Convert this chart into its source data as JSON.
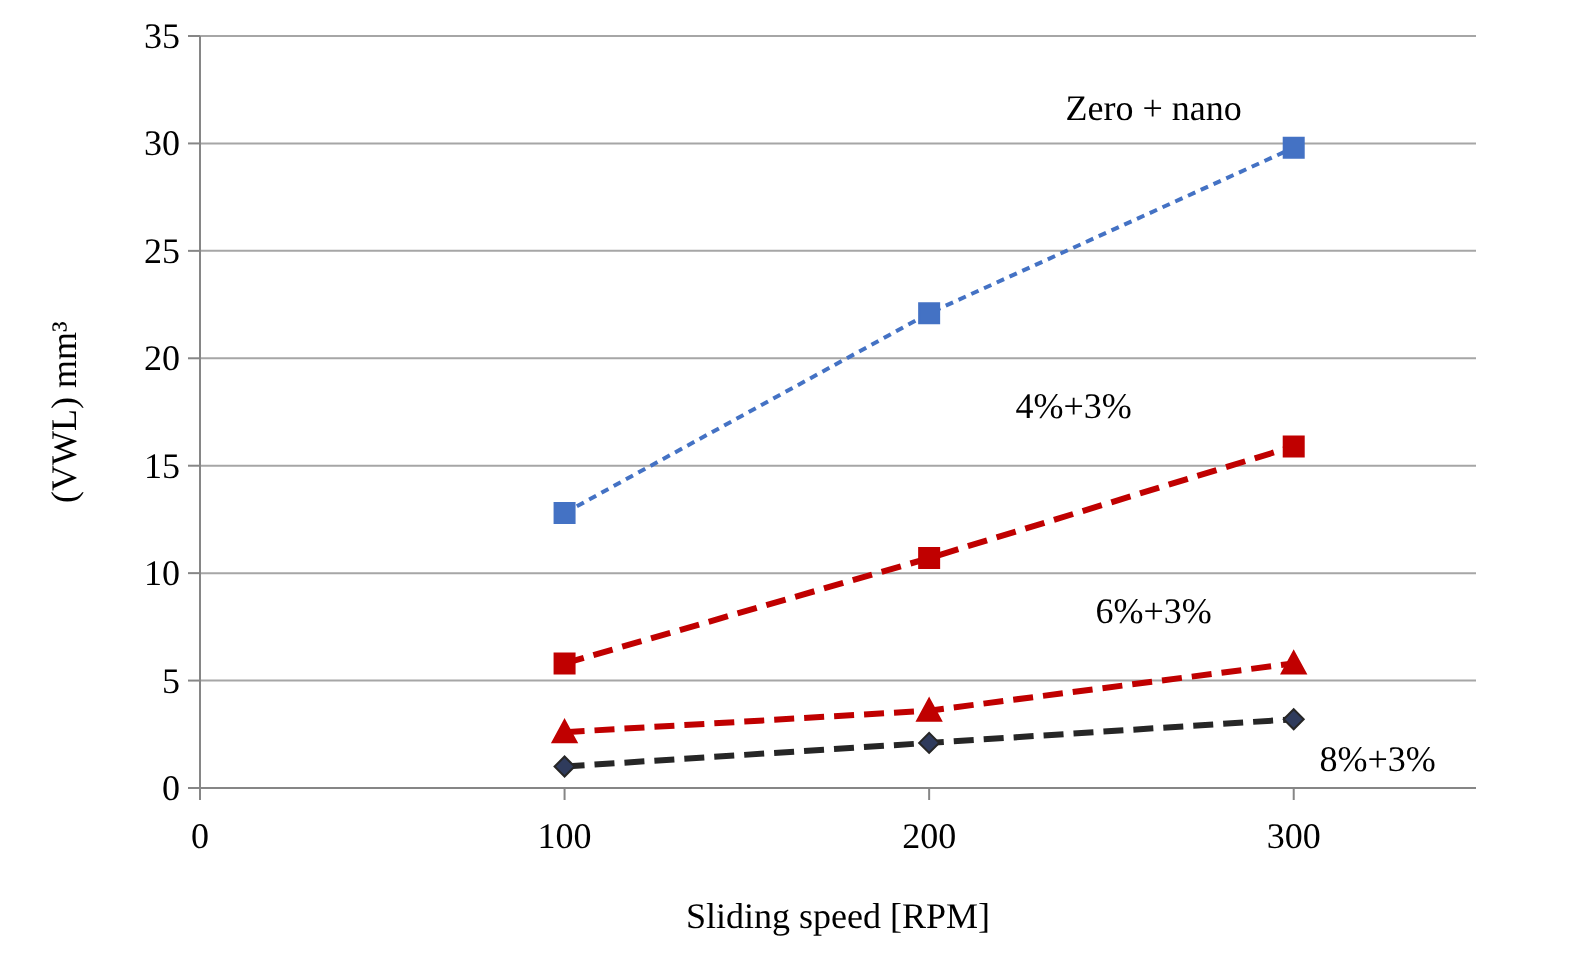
{
  "chart_data": {
    "type": "line",
    "xlabel": "Sliding speed [RPM]",
    "ylabel": "(VWL) mm³",
    "x": [
      100,
      200,
      300
    ],
    "xlim": [
      0,
      350
    ],
    "xticks": [
      0,
      100,
      200,
      300
    ],
    "ylim": [
      0,
      35
    ],
    "yticks": [
      0,
      5,
      10,
      15,
      20,
      25,
      30,
      35
    ],
    "grid": "y",
    "series": [
      {
        "name": "Zero + nano",
        "color": "#4472c4",
        "values": [
          12.8,
          22.1,
          29.8
        ],
        "marker": "square",
        "line_style": "dotted"
      },
      {
        "name": "4%+3%",
        "color": "#c00000",
        "values": [
          5.8,
          10.7,
          15.9
        ],
        "marker": "square",
        "line_style": "dashed"
      },
      {
        "name": "6%+3%",
        "color": "#c00000",
        "values": [
          2.6,
          3.6,
          5.8
        ],
        "marker": "triangle",
        "line_style": "dashed"
      },
      {
        "name": "8%+3%",
        "color": "#262626",
        "values": [
          1.0,
          2.1,
          3.2
        ],
        "marker": "diamond",
        "line_style": "dashed"
      }
    ]
  }
}
